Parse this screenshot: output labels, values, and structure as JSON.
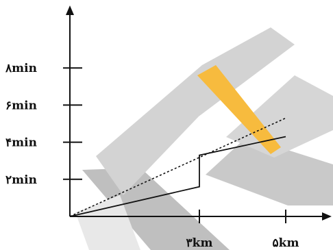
{
  "chart_data": {
    "type": "line",
    "title": "",
    "xlabel": "",
    "ylabel": "",
    "xlim": [
      0,
      5
    ],
    "ylim": [
      0,
      8
    ],
    "x_ticks": [
      {
        "value": 3,
        "label": "۳km"
      },
      {
        "value": 5,
        "label": "۵km"
      }
    ],
    "y_ticks": [
      {
        "value": 2,
        "label": "۲min"
      },
      {
        "value": 4,
        "label": "۴min"
      },
      {
        "value": 6,
        "label": "۶min"
      },
      {
        "value": 8,
        "label": "۸min"
      }
    ],
    "series": [
      {
        "style": "solid",
        "points": [
          [
            0,
            0
          ],
          [
            3,
            1.6
          ],
          [
            3,
            3.3
          ],
          [
            5,
            4.3
          ]
        ]
      },
      {
        "style": "dotted",
        "points": [
          [
            0,
            0
          ],
          [
            5,
            5.3
          ]
        ]
      }
    ],
    "colors": {
      "axis": "#111111",
      "line": "#111111",
      "watermark_gray": "#b9b9b9",
      "watermark_orange": "#f7b42a"
    }
  }
}
